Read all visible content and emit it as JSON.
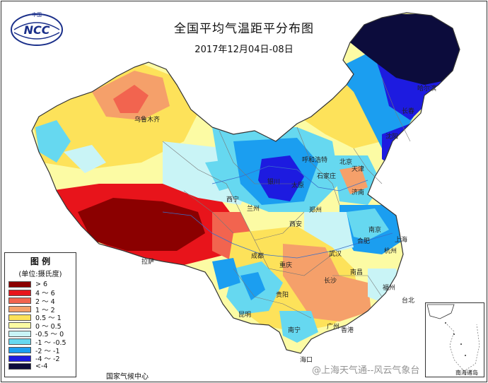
{
  "title": "全国平均气温距平分布图",
  "subtitle": "2017年12月04日-08日",
  "logo_text": "NCC",
  "logo_caption": "中国",
  "agency": "国家气候中心",
  "watermark": "@上海天气通--风云气象台",
  "inset_label": "南海诸岛",
  "legend": {
    "title": "图  例",
    "unit": "(单位:摄氏度)",
    "items": [
      {
        "label": "> 6",
        "color": "#8b0000"
      },
      {
        "label": "4 ～ 6",
        "color": "#e8141b"
      },
      {
        "label": "2 ～ 4",
        "color": "#f2644f"
      },
      {
        "label": "1 ～ 2",
        "color": "#f5a06a"
      },
      {
        "label": "0.5 ～ 1",
        "color": "#fde25a"
      },
      {
        "label": "0 ～ 0.5",
        "color": "#fcfba4"
      },
      {
        "label": "-0.5 ～ 0",
        "color": "#c9f4f6"
      },
      {
        "label": "-1 ～ -0.5",
        "color": "#66d8f0"
      },
      {
        "label": "-2 ～ -1",
        "color": "#1b9ef0"
      },
      {
        "label": "-4 ～ -2",
        "color": "#1d1be0"
      },
      {
        "label": "<-4",
        "color": "#0c0c3c"
      }
    ]
  },
  "cities": [
    {
      "name": "乌鲁木齐"
    },
    {
      "name": "哈尔滨"
    },
    {
      "name": "长春"
    },
    {
      "name": "沈阳"
    },
    {
      "name": "呼和浩特"
    },
    {
      "name": "北京"
    },
    {
      "name": "天津"
    },
    {
      "name": "石家庄"
    },
    {
      "name": "太原"
    },
    {
      "name": "银川"
    },
    {
      "name": "济南"
    },
    {
      "name": "西宁"
    },
    {
      "name": "兰州"
    },
    {
      "name": "郑州"
    },
    {
      "name": "西安"
    },
    {
      "name": "南京"
    },
    {
      "name": "合肥"
    },
    {
      "name": "上海"
    },
    {
      "name": "武汉"
    },
    {
      "name": "杭州"
    },
    {
      "name": "拉萨"
    },
    {
      "name": "成都"
    },
    {
      "name": "重庆"
    },
    {
      "name": "长沙"
    },
    {
      "name": "南昌"
    },
    {
      "name": "福州"
    },
    {
      "name": "贵阳"
    },
    {
      "name": "昆明"
    },
    {
      "name": "南宁"
    },
    {
      "name": "广州"
    },
    {
      "name": "台北"
    },
    {
      "name": "海口"
    },
    {
      "name": "香港"
    }
  ]
}
